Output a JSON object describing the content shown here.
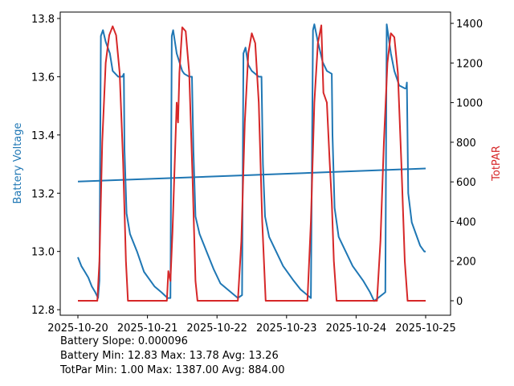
{
  "chart_data": {
    "type": "line",
    "title": "",
    "xlabel": "",
    "ylabel_left": "Battery Voltage",
    "ylabel_right": "TotPAR",
    "x_unit": "days since 2025-10-20",
    "xlim": [
      -0.254,
      5.358
    ],
    "ylim_left": [
      12.781,
      13.822
    ],
    "ylim_right": [
      -73,
      1457
    ],
    "x_ticks": [
      {
        "value": 0,
        "label": "2025-10-20"
      },
      {
        "value": 1,
        "label": "2025-10-21"
      },
      {
        "value": 2,
        "label": "2025-10-22"
      },
      {
        "value": 3,
        "label": "2025-10-23"
      },
      {
        "value": 4,
        "label": "2025-10-24"
      },
      {
        "value": 5,
        "label": "2025-10-25"
      }
    ],
    "y_ticks_left": [
      {
        "value": 12.8,
        "label": "12.8"
      },
      {
        "value": 13.0,
        "label": "13.0"
      },
      {
        "value": 13.2,
        "label": "13.2"
      },
      {
        "value": 13.4,
        "label": "13.4"
      },
      {
        "value": 13.6,
        "label": "13.6"
      },
      {
        "value": 13.8,
        "label": "13.8"
      }
    ],
    "y_ticks_right": [
      {
        "value": 0,
        "label": "0"
      },
      {
        "value": 200,
        "label": "200"
      },
      {
        "value": 400,
        "label": "400"
      },
      {
        "value": 600,
        "label": "600"
      },
      {
        "value": 800,
        "label": "800"
      },
      {
        "value": 1000,
        "label": "1000"
      },
      {
        "value": 1200,
        "label": "1200"
      },
      {
        "value": 1400,
        "label": "1400"
      }
    ],
    "grid": false,
    "series": [
      {
        "name": "Battery Voltage",
        "axis": "left",
        "color": "#1f77b4",
        "points": [
          [
            0,
            12.98
          ],
          [
            0.05,
            12.95
          ],
          [
            0.1,
            12.93
          ],
          [
            0.15,
            12.91
          ],
          [
            0.2,
            12.88
          ],
          [
            0.25,
            12.86
          ],
          [
            0.29,
            12.84
          ],
          [
            0.31,
            12.9
          ],
          [
            0.33,
            13.74
          ],
          [
            0.36,
            13.76
          ],
          [
            0.4,
            13.72
          ],
          [
            0.46,
            13.68
          ],
          [
            0.5,
            13.62
          ],
          [
            0.58,
            13.6
          ],
          [
            0.64,
            13.6
          ],
          [
            0.66,
            13.61
          ],
          [
            0.67,
            13.35
          ],
          [
            0.7,
            13.13
          ],
          [
            0.75,
            13.06
          ],
          [
            0.85,
            13.0
          ],
          [
            0.95,
            12.93
          ],
          [
            1.1,
            12.88
          ],
          [
            1.2,
            12.86
          ],
          [
            1.29,
            12.84
          ],
          [
            1.33,
            12.84
          ],
          [
            1.35,
            13.74
          ],
          [
            1.37,
            13.76
          ],
          [
            1.42,
            13.68
          ],
          [
            1.5,
            13.62
          ],
          [
            1.53,
            13.61
          ],
          [
            1.6,
            13.6
          ],
          [
            1.64,
            13.6
          ],
          [
            1.66,
            13.35
          ],
          [
            1.69,
            13.12
          ],
          [
            1.75,
            13.06
          ],
          [
            1.85,
            13.0
          ],
          [
            1.95,
            12.94
          ],
          [
            2.05,
            12.89
          ],
          [
            2.2,
            12.86
          ],
          [
            2.3,
            12.84
          ],
          [
            2.36,
            12.85
          ],
          [
            2.38,
            13.68
          ],
          [
            2.41,
            13.7
          ],
          [
            2.45,
            13.64
          ],
          [
            2.5,
            13.62
          ],
          [
            2.6,
            13.6
          ],
          [
            2.64,
            13.6
          ],
          [
            2.66,
            13.3
          ],
          [
            2.69,
            13.12
          ],
          [
            2.75,
            13.05
          ],
          [
            2.85,
            13.0
          ],
          [
            2.95,
            12.95
          ],
          [
            3.1,
            12.9
          ],
          [
            3.2,
            12.87
          ],
          [
            3.35,
            12.84
          ],
          [
            3.38,
            13.76
          ],
          [
            3.4,
            13.78
          ],
          [
            3.45,
            13.72
          ],
          [
            3.52,
            13.65
          ],
          [
            3.58,
            13.62
          ],
          [
            3.65,
            13.61
          ],
          [
            3.66,
            13.4
          ],
          [
            3.69,
            13.15
          ],
          [
            3.75,
            13.05
          ],
          [
            3.85,
            13.0
          ],
          [
            3.95,
            12.95
          ],
          [
            4.1,
            12.9
          ],
          [
            4.2,
            12.86
          ],
          [
            4.26,
            12.83
          ],
          [
            4.42,
            12.86
          ],
          [
            4.44,
            13.78
          ],
          [
            4.5,
            13.68
          ],
          [
            4.55,
            13.62
          ],
          [
            4.62,
            13.57
          ],
          [
            4.7,
            13.56
          ],
          [
            4.72,
            13.56
          ],
          [
            4.73,
            13.58
          ],
          [
            4.75,
            13.2
          ],
          [
            4.8,
            13.1
          ],
          [
            4.86,
            13.06
          ],
          [
            4.92,
            13.02
          ],
          [
            4.98,
            13.0
          ],
          [
            5.0,
            13.0
          ]
        ]
      },
      {
        "name": "Battery Trend",
        "axis": "left",
        "color": "#1f77b4",
        "points": [
          [
            0,
            13.24
          ],
          [
            5.0,
            13.285
          ]
        ]
      },
      {
        "name": "TotPAR",
        "axis": "right",
        "color": "#d62728",
        "points": [
          [
            0,
            0
          ],
          [
            0.28,
            0
          ],
          [
            0.31,
            200
          ],
          [
            0.35,
            800
          ],
          [
            0.4,
            1200
          ],
          [
            0.45,
            1340
          ],
          [
            0.5,
            1385
          ],
          [
            0.55,
            1340
          ],
          [
            0.6,
            1150
          ],
          [
            0.65,
            700
          ],
          [
            0.69,
            200
          ],
          [
            0.72,
            0
          ],
          [
            1.28,
            0
          ],
          [
            1.3,
            150
          ],
          [
            1.33,
            100
          ],
          [
            1.36,
            350
          ],
          [
            1.42,
            1000
          ],
          [
            1.44,
            900
          ],
          [
            1.46,
            1150
          ],
          [
            1.5,
            1380
          ],
          [
            1.55,
            1360
          ],
          [
            1.6,
            1150
          ],
          [
            1.65,
            600
          ],
          [
            1.69,
            100
          ],
          [
            1.72,
            0
          ],
          [
            2.3,
            0
          ],
          [
            2.35,
            300
          ],
          [
            2.4,
            900
          ],
          [
            2.45,
            1250
          ],
          [
            2.5,
            1350
          ],
          [
            2.55,
            1300
          ],
          [
            2.6,
            1000
          ],
          [
            2.65,
            400
          ],
          [
            2.7,
            0
          ],
          [
            3.3,
            0
          ],
          [
            3.35,
            400
          ],
          [
            3.4,
            1000
          ],
          [
            3.45,
            1300
          ],
          [
            3.5,
            1390
          ],
          [
            3.53,
            1050
          ],
          [
            3.58,
            1000
          ],
          [
            3.62,
            700
          ],
          [
            3.65,
            500
          ],
          [
            3.68,
            200
          ],
          [
            3.72,
            0
          ],
          [
            4.3,
            0
          ],
          [
            4.35,
            300
          ],
          [
            4.4,
            800
          ],
          [
            4.45,
            1200
          ],
          [
            4.5,
            1350
          ],
          [
            4.55,
            1330
          ],
          [
            4.6,
            1150
          ],
          [
            4.65,
            700
          ],
          [
            4.7,
            200
          ],
          [
            4.74,
            0
          ],
          [
            5.0,
            0
          ]
        ]
      }
    ],
    "annotations": [
      "Battery Slope: 0.000096",
      "Battery Min: 12.83 Max: 13.78 Avg: 13.26",
      "TotPar Min: 1.00 Max: 1387.00 Avg: 884.00"
    ]
  }
}
